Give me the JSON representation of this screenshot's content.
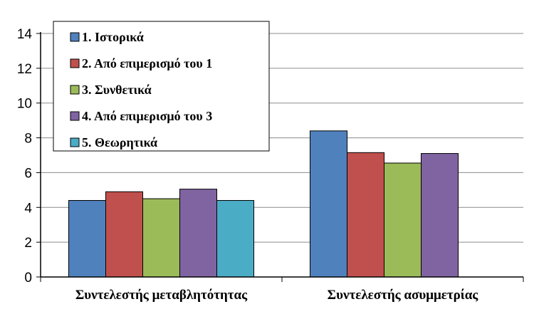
{
  "chart_data": {
    "type": "bar",
    "categories": [
      "Συντελεστής μεταβλητότητας",
      "Συντελεστής ασυμμετρίας"
    ],
    "series": [
      {
        "name": "1. Ιστορικά",
        "values": [
          4.4,
          8.4
        ],
        "color": "#4F81BD"
      },
      {
        "name": "2. Από επιμερισμό του 1",
        "values": [
          4.9,
          7.15
        ],
        "color": "#C0504D"
      },
      {
        "name": "3. Συνθετικά",
        "values": [
          4.5,
          6.55
        ],
        "color": "#9BBB59"
      },
      {
        "name": "4. Από επιμερισμό του 3",
        "values": [
          5.05,
          7.1
        ],
        "color": "#8064A2"
      },
      {
        "name": "5. Θεωρητικά",
        "values": [
          4.4,
          null
        ],
        "color": "#4BACC6"
      }
    ],
    "ylim": [
      0,
      14
    ],
    "yticks": [
      "0",
      "2",
      "4",
      "6",
      "8",
      "10",
      "12",
      "14"
    ],
    "grid": true,
    "legend_position": "top-left"
  }
}
